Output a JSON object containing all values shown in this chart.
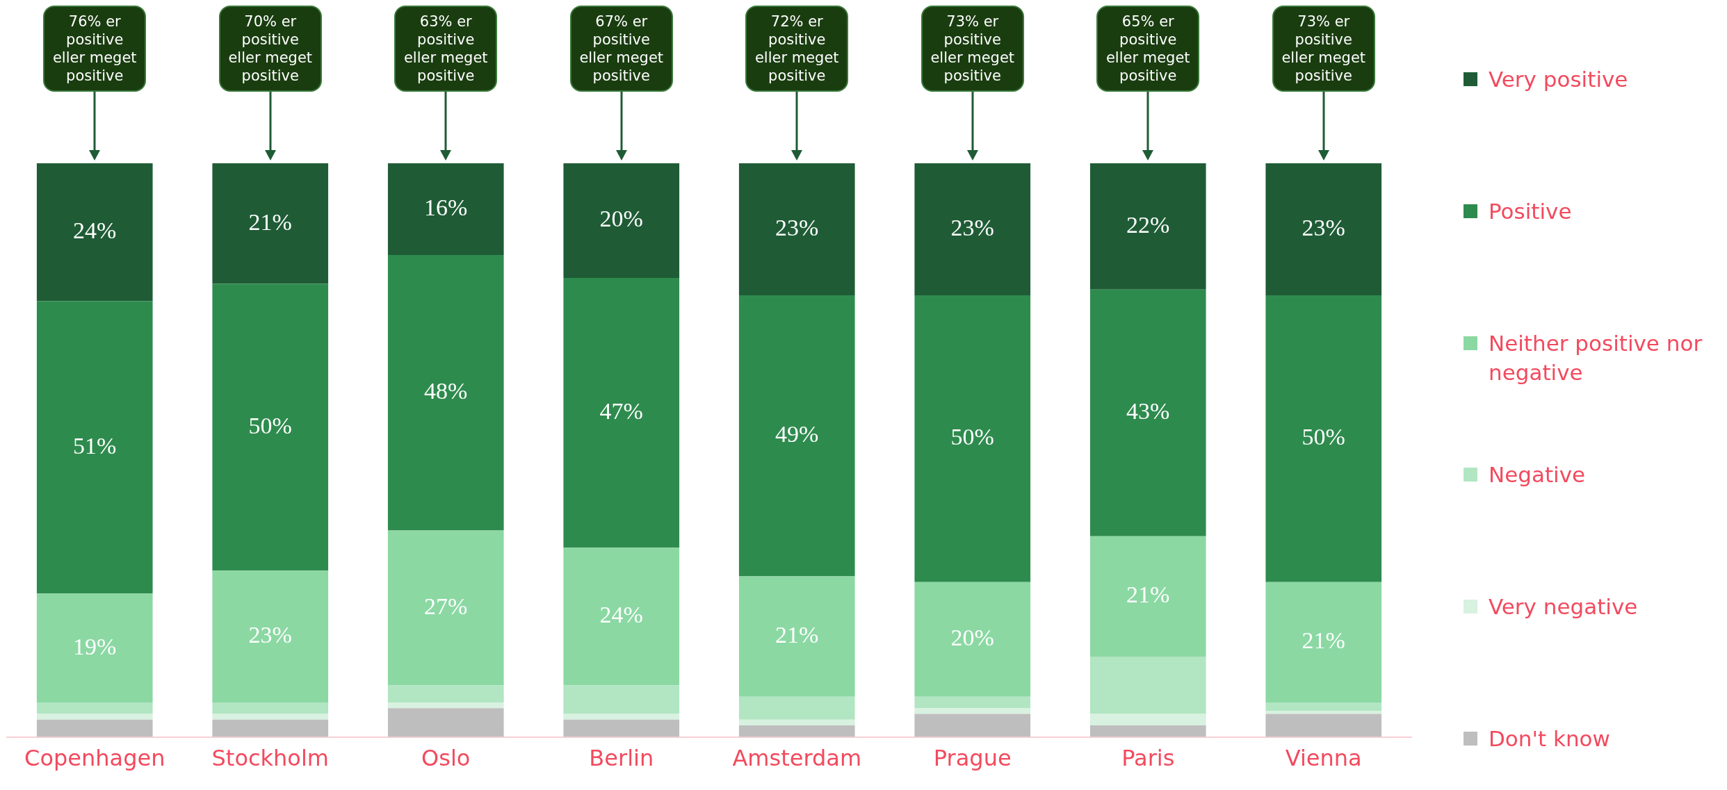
{
  "chart_data": {
    "type": "bar",
    "stacked": true,
    "categories": [
      "Copenhagen",
      "Stockholm",
      "Oslo",
      "Berlin",
      "Amsterdam",
      "Prague",
      "Paris",
      "Vienna"
    ],
    "series": [
      {
        "name": "Don't know",
        "color": "#bebebe",
        "values": [
          3,
          3,
          5,
          3,
          2,
          4,
          2,
          4
        ],
        "value_labels": [
          null,
          null,
          null,
          null,
          null,
          null,
          null,
          null
        ]
      },
      {
        "name": "Very negative",
        "color": "#d8f1e0",
        "values": [
          1,
          1,
          1,
          1,
          1,
          1,
          2,
          0.5
        ],
        "value_labels": [
          null,
          null,
          null,
          null,
          null,
          null,
          null,
          null
        ]
      },
      {
        "name": "Negative",
        "color": "#b2e5c2",
        "values": [
          2,
          2,
          3,
          5,
          4,
          2,
          10,
          1.5
        ],
        "value_labels": [
          null,
          null,
          null,
          null,
          null,
          null,
          null,
          null
        ]
      },
      {
        "name": "Neither positive nor negative",
        "color": "#8bd8a3",
        "values": [
          19,
          23,
          27,
          24,
          21,
          20,
          21,
          21
        ],
        "value_labels": [
          "19%",
          "23%",
          "27%",
          "24%",
          "21%",
          "20%",
          "21%",
          "21%"
        ]
      },
      {
        "name": "Positive",
        "color": "#2e8b4e",
        "values": [
          51,
          50,
          48,
          47,
          49,
          50,
          43,
          50
        ],
        "value_labels": [
          "51%",
          "50%",
          "48%",
          "47%",
          "49%",
          "50%",
          "43%",
          "50%"
        ]
      },
      {
        "name": "Very positive",
        "color": "#1f5c36",
        "values": [
          24,
          21,
          16,
          20,
          23,
          23,
          22,
          23
        ],
        "value_labels": [
          "24%",
          "21%",
          "16%",
          "20%",
          "23%",
          "23%",
          "22%",
          "23%"
        ]
      }
    ],
    "ylim": [
      0,
      100
    ],
    "tick_labels": "x",
    "grid": false,
    "legend": "right",
    "annotations": [
      "76% er positive eller meget positive",
      "70% er positive eller meget positive",
      "63% er positive eller meget positive",
      "67% er positive eller meget positive",
      "72% er positive eller meget positive",
      "73% er positive eller meget positive",
      "65% er positive eller meget positive",
      "73% er positive eller meget positive"
    ]
  }
}
